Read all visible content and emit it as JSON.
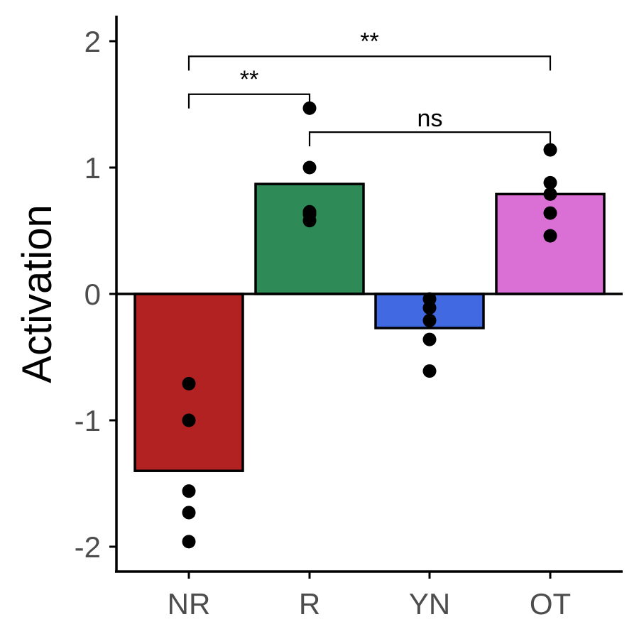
{
  "chart_data": {
    "type": "bar",
    "ylabel": "Activation",
    "xlabel": "",
    "ylim": [
      -2.2,
      2.2
    ],
    "yticks": [
      2,
      1,
      0,
      -1,
      -2
    ],
    "ytick_labels": [
      "2",
      "1",
      "0",
      "-1",
      "-2"
    ],
    "categories": [
      "NR",
      "R",
      "YN",
      "OT"
    ],
    "values": [
      -1.4,
      0.87,
      -0.27,
      0.79
    ],
    "colors": [
      "#b22222",
      "#2e8b57",
      "#4169e1",
      "#da70d6"
    ],
    "points": [
      [
        -0.71,
        -1.0,
        -1.56,
        -1.73,
        -1.96
      ],
      [
        1.47,
        1.0,
        0.65,
        0.63,
        0.58
      ],
      [
        -0.04,
        -0.11,
        -0.21,
        -0.36,
        -0.61
      ],
      [
        1.14,
        0.88,
        0.79,
        0.64,
        0.46
      ]
    ],
    "comparisons": [
      {
        "from": "NR",
        "to": "OT",
        "y": 1.88,
        "label": "**"
      },
      {
        "from": "NR",
        "to": "R",
        "y": 1.58,
        "label": "**"
      },
      {
        "from": "R",
        "to": "OT",
        "y": 1.28,
        "label": "ns"
      }
    ],
    "grid": false,
    "legend": "none"
  }
}
